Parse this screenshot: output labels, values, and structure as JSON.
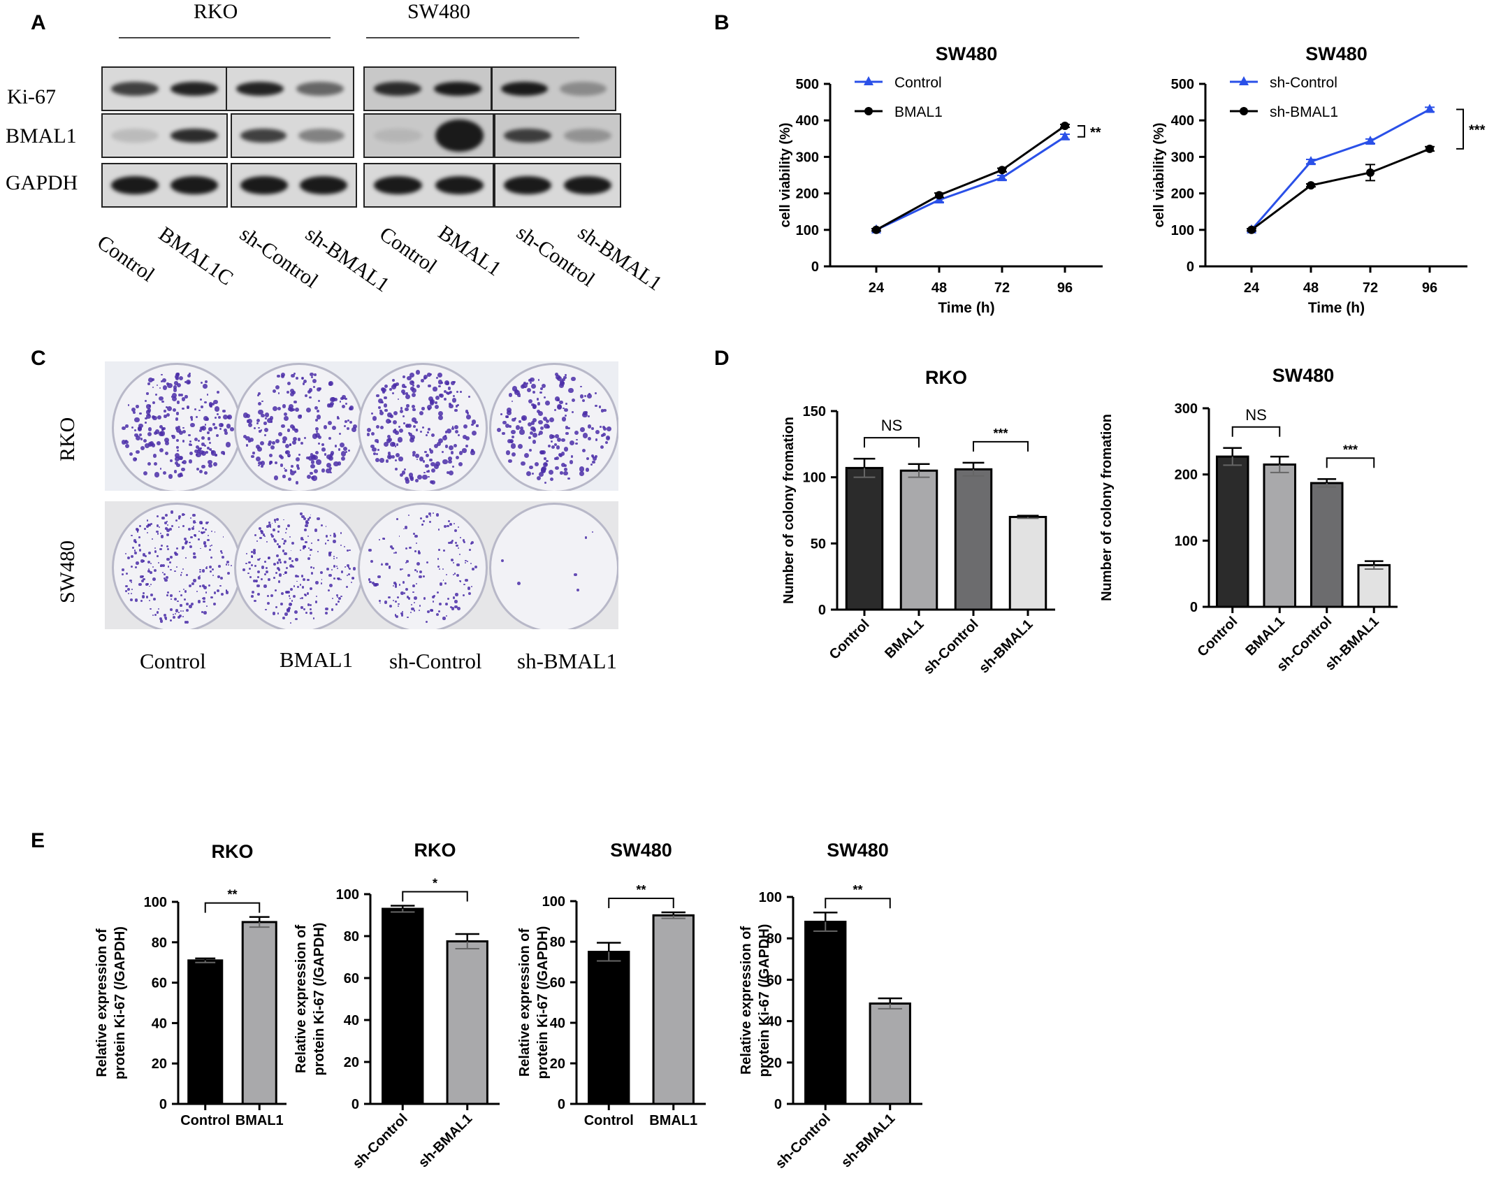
{
  "figure": {
    "panels": {
      "A": "A",
      "B": "B",
      "C": "C",
      "D": "D",
      "E": "E"
    }
  },
  "panelA": {
    "cell_lines": [
      "RKO",
      "SW480"
    ],
    "rows": [
      "Ki-67",
      "BMAL1",
      "GAPDH"
    ],
    "lanes": [
      "Control",
      "BMAL1C",
      "sh-Control",
      "sh-BMAL1",
      "Control",
      "BMAL1",
      "sh-Control",
      "sh-BMAL1"
    ],
    "colors": {
      "band": "#1a1a1a",
      "membrane": "#d9d9d9"
    }
  },
  "panelC": {
    "rows": [
      "RKO",
      "SW480"
    ],
    "columns": [
      "Control",
      "BMAL1",
      "sh-Control",
      "sh-BMAL1"
    ],
    "colors": {
      "colony": "#4b2ea8",
      "dish": "#f2f2f6"
    }
  },
  "chart_data": [
    {
      "id": "B1",
      "type": "line",
      "title": "SW480",
      "xlabel": "Time  (h)",
      "ylabel": "cell viability (%)",
      "x": [
        24,
        48,
        72,
        96
      ],
      "ylim": [
        0,
        500
      ],
      "yticks": [
        0,
        100,
        200,
        300,
        400,
        500
      ],
      "series": [
        {
          "name": "Control",
          "values": [
            100,
            182,
            243,
            355
          ],
          "errors": [
            3,
            6,
            6,
            7
          ],
          "color": "#2a50e8",
          "marker": "triangle"
        },
        {
          "name": "BMAL1",
          "values": [
            100,
            195,
            264,
            385
          ],
          "errors": [
            3,
            6,
            5,
            4
          ],
          "color": "#000000",
          "marker": "circle"
        }
      ],
      "significance": "**",
      "legend": "top-left"
    },
    {
      "id": "B2",
      "type": "line",
      "title": "SW480",
      "xlabel": "Time  (h)",
      "ylabel": "cell viability (%)",
      "x": [
        24,
        48,
        72,
        96
      ],
      "ylim": [
        0,
        500
      ],
      "yticks": [
        0,
        100,
        200,
        300,
        400,
        500
      ],
      "series": [
        {
          "name": "sh-Control",
          "values": [
            100,
            287,
            343,
            430
          ],
          "errors": [
            3,
            6,
            6,
            6
          ],
          "color": "#2a50e8",
          "marker": "triangle"
        },
        {
          "name": "sh-BMAL1",
          "values": [
            100,
            222,
            257,
            322
          ],
          "errors": [
            3,
            4,
            22,
            6
          ],
          "color": "#000000",
          "marker": "circle"
        }
      ],
      "significance": "***",
      "legend": "top-left"
    },
    {
      "id": "D1",
      "type": "bar",
      "title": "RKO",
      "ylabel": "Number  of colony fromation",
      "categories": [
        "Control",
        "BMAL1",
        "sh-Control",
        "sh-BMAL1"
      ],
      "values": [
        107,
        105,
        106,
        70
      ],
      "errors": [
        7,
        5,
        5,
        1
      ],
      "ylim": [
        0,
        150
      ],
      "yticks": [
        0,
        50,
        100,
        150
      ],
      "bar_colors": [
        "#2b2b2b",
        "#a9a9ab",
        "#6c6c6e",
        "#e2e2e2"
      ],
      "brackets": [
        {
          "from": 0,
          "to": 1,
          "label": "NS"
        },
        {
          "from": 2,
          "to": 3,
          "label": "***"
        }
      ]
    },
    {
      "id": "D2",
      "type": "bar",
      "title": "SW480",
      "ylabel": "Number  of colony fromation",
      "categories": [
        "Control",
        "BMAL1",
        "sh-Control",
        "sh-BMAL1"
      ],
      "values": [
        227,
        215,
        187,
        63
      ],
      "errors": [
        13,
        12,
        6,
        6
      ],
      "ylim": [
        0,
        300
      ],
      "yticks": [
        0,
        100,
        200,
        300
      ],
      "bar_colors": [
        "#2b2b2b",
        "#a9a9ab",
        "#6c6c6e",
        "#e2e2e2"
      ],
      "brackets": [
        {
          "from": 0,
          "to": 1,
          "label": "NS"
        },
        {
          "from": 2,
          "to": 3,
          "label": "***"
        }
      ]
    },
    {
      "id": "E1",
      "type": "bar",
      "title": "RKO",
      "ylabel": "Relative expression of protein Ki-67 (/GAPDH)",
      "categories": [
        "Control",
        "BMAL1"
      ],
      "values": [
        71,
        90
      ],
      "errors": [
        1,
        2.5
      ],
      "ylim": [
        0,
        100
      ],
      "yticks": [
        0,
        20,
        40,
        60,
        80,
        100
      ],
      "bar_colors": [
        "#000000",
        "#a9a9ab"
      ],
      "rotate_labels": false,
      "brackets": [
        {
          "from": 0,
          "to": 1,
          "label": "**"
        }
      ]
    },
    {
      "id": "E2",
      "type": "bar",
      "title": "RKO",
      "ylabel": "Relative expression of protein Ki-67 (/GAPDH)",
      "categories": [
        "sh-Control",
        "sh-BMAL1"
      ],
      "values": [
        93,
        77.5
      ],
      "errors": [
        1.5,
        3.5
      ],
      "ylim": [
        0,
        100
      ],
      "yticks": [
        0,
        20,
        40,
        60,
        80,
        100
      ],
      "bar_colors": [
        "#000000",
        "#a9a9ab"
      ],
      "rotate_labels": true,
      "brackets": [
        {
          "from": 0,
          "to": 1,
          "label": "*"
        }
      ]
    },
    {
      "id": "E3",
      "type": "bar",
      "title": "SW480",
      "ylabel": "Relative expression of protein Ki-67 (/GAPDH)",
      "categories": [
        "Control",
        "BMAL1"
      ],
      "values": [
        75,
        93
      ],
      "errors": [
        4.5,
        1.5
      ],
      "ylim": [
        0,
        100
      ],
      "yticks": [
        0,
        20,
        40,
        60,
        80,
        100
      ],
      "bar_colors": [
        "#000000",
        "#a9a9ab"
      ],
      "rotate_labels": false,
      "brackets": [
        {
          "from": 0,
          "to": 1,
          "label": "**"
        }
      ]
    },
    {
      "id": "E4",
      "type": "bar",
      "title": "SW480",
      "ylabel": "Relative expression of protein Ki-67 (/GAPDH)",
      "categories": [
        "sh-Control",
        "sh-BMAL1"
      ],
      "values": [
        88,
        48.5
      ],
      "errors": [
        4.5,
        2.5
      ],
      "ylim": [
        0,
        100
      ],
      "yticks": [
        0,
        20,
        40,
        60,
        80,
        100
      ],
      "bar_colors": [
        "#000000",
        "#a9a9ab"
      ],
      "rotate_labels": true,
      "brackets": [
        {
          "from": 0,
          "to": 1,
          "label": "**"
        }
      ]
    }
  ]
}
